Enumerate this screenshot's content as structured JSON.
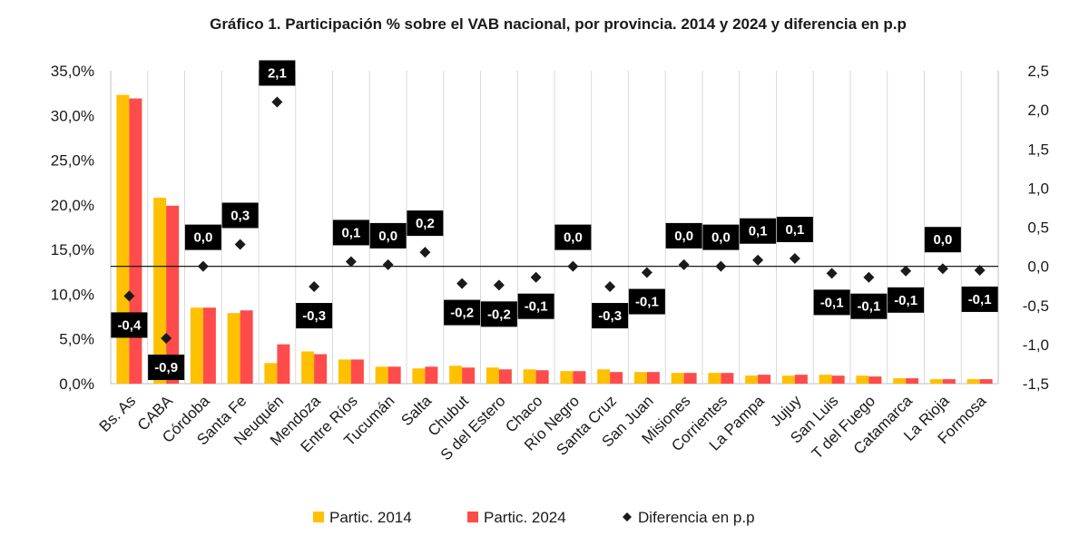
{
  "chart_data": {
    "type": "bar",
    "title": "Gráfico 1. Participación % sobre el VAB nacional, por provincia. 2014 y 2024 y diferencia en p.p",
    "categories": [
      "Bs. As",
      "CABA",
      "Córdoba",
      "Santa Fe",
      "Neuquén",
      "Mendoza",
      "Entre Ríos",
      "Tucumán",
      "Salta",
      "Chubut",
      "S del Estero",
      "Chaco",
      "Río Negro",
      "Santa Cruz",
      "San Juan",
      "Misiones",
      "Corrientes",
      "La Pampa",
      "Jujuy",
      "San Luis",
      "T del Fuego",
      "Catamarca",
      "La Rioja",
      "Formosa"
    ],
    "series": [
      {
        "name": "Partic. 2014",
        "axis": "left",
        "color": "#ffc000",
        "values": [
          32.3,
          20.8,
          8.5,
          7.9,
          2.3,
          3.6,
          2.7,
          1.9,
          1.7,
          2.0,
          1.8,
          1.6,
          1.4,
          1.6,
          1.3,
          1.2,
          1.2,
          0.9,
          0.9,
          1.0,
          0.9,
          0.6,
          0.5,
          0.5
        ]
      },
      {
        "name": "Partic. 2024",
        "axis": "right_bars",
        "color": "#ff4b4b",
        "values": [
          31.9,
          19.9,
          8.5,
          8.2,
          4.4,
          3.3,
          2.7,
          1.9,
          1.9,
          1.8,
          1.6,
          1.5,
          1.4,
          1.3,
          1.3,
          1.2,
          1.2,
          1.0,
          1.0,
          0.9,
          0.8,
          0.6,
          0.5,
          0.5
        ]
      },
      {
        "name": "Diferencia en p.p",
        "axis": "right",
        "type": "scatter",
        "color": "#1a1a1a",
        "values": [
          -0.38,
          -0.92,
          0.0,
          0.28,
          2.1,
          -0.26,
          0.06,
          0.02,
          0.18,
          -0.22,
          -0.24,
          -0.14,
          0.0,
          -0.26,
          -0.08,
          0.02,
          0.0,
          0.08,
          0.1,
          -0.09,
          -0.14,
          -0.06,
          -0.03,
          -0.05
        ],
        "labels": [
          "-0,4",
          "-0,9",
          "0,0",
          "0,3",
          "2,1",
          "-0,3",
          "0,1",
          "0,0",
          "0,2",
          "-0,2",
          "-0,2",
          "-0,1",
          "0,0",
          "-0,3",
          "-0,1",
          "0,0",
          "0,0",
          "0,1",
          "0,1",
          "-0,1",
          "-0,1",
          "-0,1",
          "0,0",
          "-0,1"
        ],
        "label_side": [
          "below",
          "below",
          "above",
          "above",
          "above",
          "below",
          "above",
          "above",
          "above",
          "below",
          "below",
          "below",
          "above",
          "below",
          "below",
          "above",
          "above",
          "above",
          "above",
          "below",
          "below",
          "below",
          "above",
          "below"
        ]
      }
    ],
    "y_left": {
      "min": 0,
      "max": 35,
      "ticks": [
        "0,0%",
        "5,0%",
        "10,0%",
        "15,0%",
        "20,0%",
        "25,0%",
        "30,0%",
        "35,0%"
      ]
    },
    "y_right": {
      "min": -1.5,
      "max": 2.5,
      "ticks": [
        "-1,5",
        "-1,0",
        "-0,5",
        "0,0",
        "0,5",
        "1,0",
        "1,5",
        "2,0",
        "2,5"
      ]
    },
    "legend": [
      "Partic. 2014",
      "Partic. 2024",
      "Diferencia en p.p"
    ],
    "legend_position": "bottom",
    "grid": false
  }
}
